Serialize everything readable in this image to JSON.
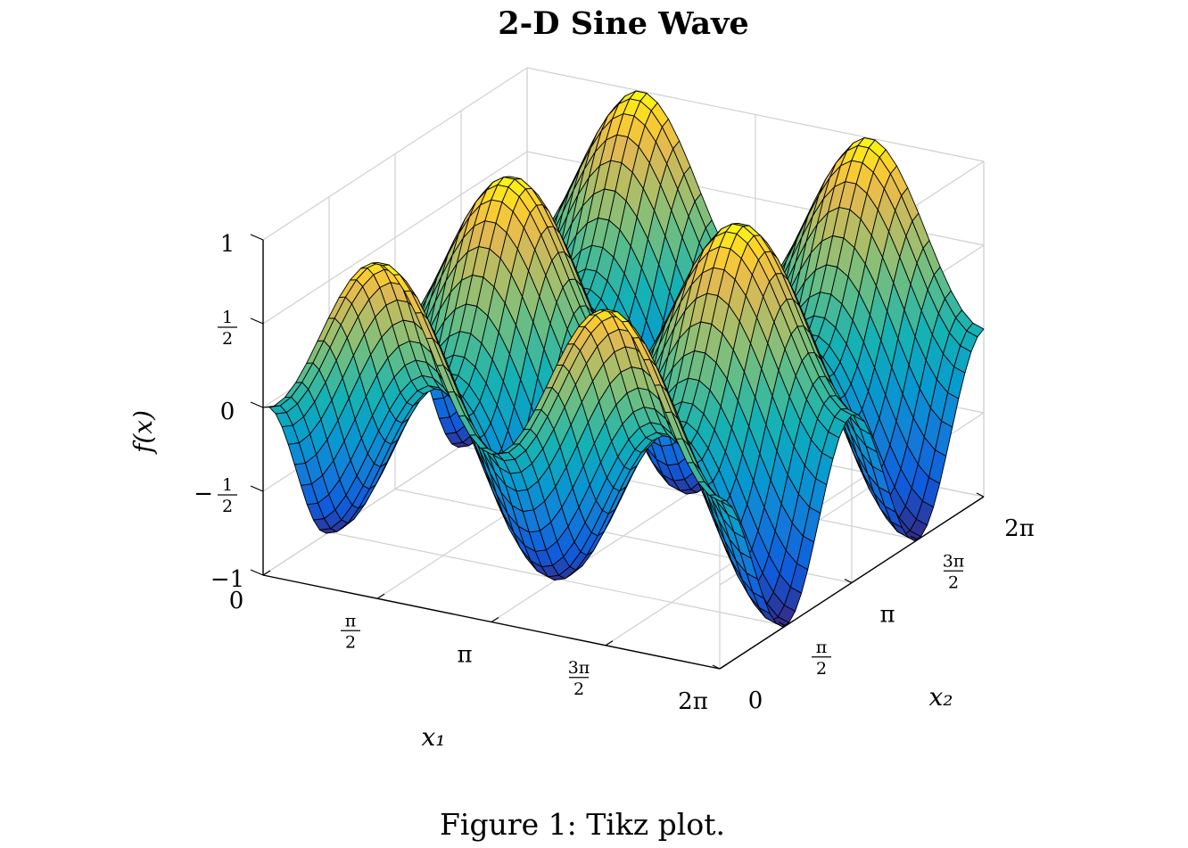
{
  "chart_data": {
    "type": "surface",
    "title": "2-D Sine Wave",
    "function": "f(x) = sin(x1 + x2) * sin(x1 - x2)",
    "x1_range": [
      0,
      6.2832
    ],
    "x2_range": [
      0,
      6.2832
    ],
    "z_range": [
      -1,
      1
    ],
    "grid": true,
    "colormap": "parula",
    "xlabel": "x₁",
    "ylabel": "x₂",
    "zlabel": "f(x)",
    "x_ticks": [
      "0",
      "π/2",
      "π",
      "3π/2",
      "2π"
    ],
    "y_ticks": [
      "0",
      "π/2",
      "π",
      "3π/2",
      "2π"
    ],
    "z_ticks": [
      "−1",
      "−1/2",
      "0",
      "1/2",
      "1"
    ]
  },
  "figure": {
    "title": "2-D Sine Wave",
    "caption": "Figure 1: Tikz plot."
  },
  "colors": {
    "grid": "#d0d0d0",
    "axis": "#000000",
    "edge": "#000000",
    "parula_low": "#352a87",
    "parula_high": "#f9fb0e"
  }
}
